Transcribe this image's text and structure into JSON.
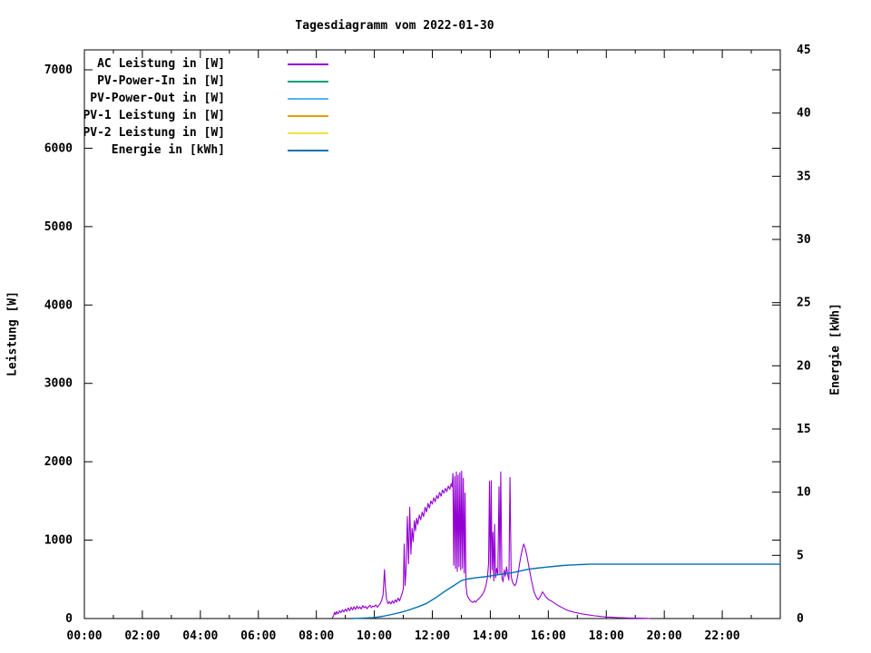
{
  "chart_data": {
    "type": "line",
    "title": "Tagesdiagramm vom 2022-01-30",
    "x_axis": {
      "unit": "time of day",
      "range_hours": [
        0,
        24
      ],
      "major_tick_labels": [
        "00:00",
        "02:00",
        "04:00",
        "06:00",
        "08:00",
        "10:00",
        "12:00",
        "14:00",
        "16:00",
        "18:00",
        "20:00",
        "22:00"
      ],
      "major_tick_every_hours": 2,
      "minor_tick_every_hours": 1
    },
    "y_axis": {
      "label": "Leistung [W]",
      "ticks": [
        0,
        1000,
        2000,
        3000,
        4000,
        5000,
        6000,
        7000
      ],
      "range": [
        0,
        7250
      ]
    },
    "y2_axis": {
      "label": "Energie [kWh]",
      "ticks": [
        0,
        5,
        10,
        15,
        20,
        25,
        30,
        35,
        40,
        45
      ],
      "range": [
        0,
        45
      ]
    },
    "grid": false,
    "legend_position": "top-left-inside",
    "legend": [
      {
        "label": "AC Leistung in [W]",
        "color": "#9400d3"
      },
      {
        "label": "PV-Power-In in [W]",
        "color": "#009e73"
      },
      {
        "label": "PV-Power-Out in [W]",
        "color": "#56b4e9"
      },
      {
        "label": "PV-1 Leistung in [W]",
        "color": "#e69f00"
      },
      {
        "label": "PV-2 Leistung in [W]",
        "color": "#f0e442"
      },
      {
        "label": "Energie in [kWh]",
        "color": "#0072b2"
      }
    ],
    "series": [
      {
        "name": "AC Leistung in [W]",
        "color": "#9400d3",
        "axis": "y1",
        "points": [
          [
            8.55,
            5
          ],
          [
            8.6,
            40
          ],
          [
            8.63,
            80
          ],
          [
            8.67,
            50
          ],
          [
            8.7,
            90
          ],
          [
            8.75,
            60
          ],
          [
            8.8,
            100
          ],
          [
            8.85,
            75
          ],
          [
            8.9,
            110
          ],
          [
            8.95,
            85
          ],
          [
            9.0,
            120
          ],
          [
            9.05,
            90
          ],
          [
            9.1,
            135
          ],
          [
            9.15,
            100
          ],
          [
            9.2,
            145
          ],
          [
            9.25,
            110
          ],
          [
            9.3,
            150
          ],
          [
            9.35,
            115
          ],
          [
            9.4,
            160
          ],
          [
            9.45,
            125
          ],
          [
            9.5,
            150
          ],
          [
            9.55,
            120
          ],
          [
            9.6,
            165
          ],
          [
            9.65,
            135
          ],
          [
            9.7,
            155
          ],
          [
            9.75,
            125
          ],
          [
            9.8,
            150
          ],
          [
            9.85,
            170
          ],
          [
            9.9,
            140
          ],
          [
            9.95,
            160
          ],
          [
            10.0,
            150
          ],
          [
            10.05,
            175
          ],
          [
            10.1,
            145
          ],
          [
            10.15,
            165
          ],
          [
            10.2,
            190
          ],
          [
            10.25,
            230
          ],
          [
            10.3,
            300
          ],
          [
            10.35,
            625
          ],
          [
            10.38,
            420
          ],
          [
            10.42,
            250
          ],
          [
            10.47,
            190
          ],
          [
            10.52,
            215
          ],
          [
            10.57,
            185
          ],
          [
            10.62,
            225
          ],
          [
            10.67,
            195
          ],
          [
            10.72,
            240
          ],
          [
            10.77,
            210
          ],
          [
            10.82,
            260
          ],
          [
            10.87,
            225
          ],
          [
            10.92,
            280
          ],
          [
            10.96,
            320
          ],
          [
            11.0,
            380
          ],
          [
            11.03,
            950
          ],
          [
            11.06,
            420
          ],
          [
            11.1,
            650
          ],
          [
            11.14,
            1300
          ],
          [
            11.18,
            700
          ],
          [
            11.22,
            1420
          ],
          [
            11.26,
            820
          ],
          [
            11.3,
            1150
          ],
          [
            11.34,
            980
          ],
          [
            11.38,
            1250
          ],
          [
            11.42,
            1120
          ],
          [
            11.46,
            1280
          ],
          [
            11.5,
            1200
          ],
          [
            11.55,
            1320
          ],
          [
            11.6,
            1260
          ],
          [
            11.65,
            1360
          ],
          [
            11.7,
            1300
          ],
          [
            11.75,
            1420
          ],
          [
            11.8,
            1360
          ],
          [
            11.85,
            1470
          ],
          [
            11.9,
            1410
          ],
          [
            11.95,
            1500
          ],
          [
            12.0,
            1460
          ],
          [
            12.05,
            1540
          ],
          [
            12.1,
            1490
          ],
          [
            12.15,
            1570
          ],
          [
            12.2,
            1530
          ],
          [
            12.25,
            1610
          ],
          [
            12.3,
            1560
          ],
          [
            12.35,
            1640
          ],
          [
            12.4,
            1600
          ],
          [
            12.45,
            1660
          ],
          [
            12.5,
            1620
          ],
          [
            12.55,
            1690
          ],
          [
            12.6,
            1650
          ],
          [
            12.65,
            1720
          ],
          [
            12.68,
            1680
          ],
          [
            12.71,
            1850
          ],
          [
            12.74,
            680
          ],
          [
            12.77,
            1810
          ],
          [
            12.8,
            640
          ],
          [
            12.83,
            1870
          ],
          [
            12.86,
            600
          ],
          [
            12.89,
            1830
          ],
          [
            12.92,
            660
          ],
          [
            12.95,
            1860
          ],
          [
            12.98,
            620
          ],
          [
            13.01,
            1880
          ],
          [
            13.04,
            640
          ],
          [
            13.07,
            1790
          ],
          [
            13.1,
            580
          ],
          [
            13.13,
            1600
          ],
          [
            13.16,
            420
          ],
          [
            13.2,
            300
          ],
          [
            13.25,
            260
          ],
          [
            13.3,
            235
          ],
          [
            13.35,
            215
          ],
          [
            13.4,
            205
          ],
          [
            13.45,
            225
          ],
          [
            13.5,
            210
          ],
          [
            13.55,
            235
          ],
          [
            13.6,
            250
          ],
          [
            13.65,
            270
          ],
          [
            13.7,
            295
          ],
          [
            13.75,
            320
          ],
          [
            13.8,
            360
          ],
          [
            13.85,
            420
          ],
          [
            13.9,
            520
          ],
          [
            13.94,
            700
          ],
          [
            13.97,
            1750
          ],
          [
            14.0,
            520
          ],
          [
            14.03,
            1760
          ],
          [
            14.06,
            620
          ],
          [
            14.09,
            1100
          ],
          [
            14.12,
            480
          ],
          [
            14.15,
            1200
          ],
          [
            14.18,
            520
          ],
          [
            14.22,
            640
          ],
          [
            14.26,
            560
          ],
          [
            14.3,
            1680
          ],
          [
            14.33,
            580
          ],
          [
            14.36,
            1870
          ],
          [
            14.4,
            520
          ],
          [
            14.44,
            470
          ],
          [
            14.48,
            620
          ],
          [
            14.52,
            540
          ],
          [
            14.56,
            660
          ],
          [
            14.6,
            560
          ],
          [
            14.64,
            490
          ],
          [
            14.68,
            1800
          ],
          [
            14.72,
            540
          ],
          [
            14.76,
            470
          ],
          [
            14.8,
            440
          ],
          [
            14.85,
            420
          ],
          [
            14.9,
            460
          ],
          [
            14.95,
            560
          ],
          [
            15.0,
            680
          ],
          [
            15.05,
            790
          ],
          [
            15.1,
            880
          ],
          [
            15.15,
            950
          ],
          [
            15.2,
            900
          ],
          [
            15.25,
            820
          ],
          [
            15.3,
            720
          ],
          [
            15.35,
            620
          ],
          [
            15.4,
            520
          ],
          [
            15.45,
            430
          ],
          [
            15.5,
            350
          ],
          [
            15.55,
            300
          ],
          [
            15.6,
            265
          ],
          [
            15.65,
            240
          ],
          [
            15.7,
            265
          ],
          [
            15.75,
            300
          ],
          [
            15.8,
            340
          ],
          [
            15.85,
            315
          ],
          [
            15.9,
            285
          ],
          [
            15.95,
            265
          ],
          [
            16.0,
            245
          ],
          [
            16.1,
            225
          ],
          [
            16.2,
            200
          ],
          [
            16.3,
            175
          ],
          [
            16.4,
            155
          ],
          [
            16.5,
            135
          ],
          [
            16.6,
            115
          ],
          [
            16.7,
            100
          ],
          [
            16.8,
            90
          ],
          [
            16.9,
            80
          ],
          [
            17.0,
            72
          ],
          [
            17.1,
            64
          ],
          [
            17.2,
            57
          ],
          [
            17.3,
            51
          ],
          [
            17.4,
            45
          ],
          [
            17.5,
            40
          ],
          [
            17.6,
            35
          ],
          [
            17.7,
            31
          ],
          [
            17.8,
            27
          ],
          [
            17.9,
            23
          ],
          [
            18.0,
            20
          ],
          [
            18.2,
            16
          ],
          [
            18.4,
            12
          ],
          [
            18.6,
            9
          ],
          [
            18.8,
            7
          ],
          [
            19.0,
            5
          ],
          [
            19.2,
            3
          ],
          [
            19.4,
            2
          ],
          [
            19.5,
            0
          ]
        ]
      },
      {
        "name": "PV-Power-In in [W]",
        "color": "#009e73",
        "axis": "y1",
        "points": []
      },
      {
        "name": "PV-Power-Out in [W]",
        "color": "#56b4e9",
        "axis": "y1",
        "points": []
      },
      {
        "name": "PV-1 Leistung in [W]",
        "color": "#e69f00",
        "axis": "y1",
        "points": []
      },
      {
        "name": "PV-2 Leistung in [W]",
        "color": "#f0e442",
        "axis": "y1",
        "points": []
      },
      {
        "name": "Energie in [kWh]",
        "color": "#0072b2",
        "axis": "y2",
        "points": [
          [
            9.2,
            0
          ],
          [
            9.5,
            0.02
          ],
          [
            10.0,
            0.08
          ],
          [
            10.3,
            0.18
          ],
          [
            10.6,
            0.32
          ],
          [
            10.9,
            0.48
          ],
          [
            11.2,
            0.68
          ],
          [
            11.5,
            0.92
          ],
          [
            11.8,
            1.2
          ],
          [
            12.1,
            1.62
          ],
          [
            12.4,
            2.1
          ],
          [
            12.7,
            2.55
          ],
          [
            13.0,
            3.0
          ],
          [
            13.2,
            3.12
          ],
          [
            13.5,
            3.22
          ],
          [
            13.8,
            3.3
          ],
          [
            14.1,
            3.4
          ],
          [
            14.4,
            3.52
          ],
          [
            14.7,
            3.6
          ],
          [
            15.0,
            3.75
          ],
          [
            15.3,
            3.9
          ],
          [
            15.6,
            3.98
          ],
          [
            15.9,
            4.06
          ],
          [
            16.2,
            4.13
          ],
          [
            16.5,
            4.2
          ],
          [
            16.8,
            4.24
          ],
          [
            17.1,
            4.27
          ],
          [
            17.4,
            4.3
          ],
          [
            24.0,
            4.3
          ]
        ]
      }
    ]
  }
}
